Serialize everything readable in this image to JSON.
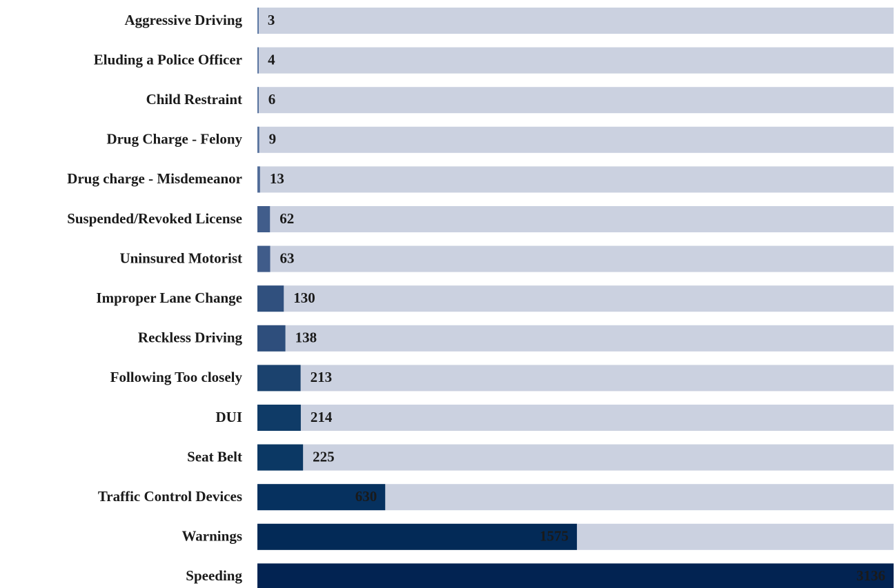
{
  "chart_data": {
    "type": "bar",
    "categories": [
      "Aggressive Driving",
      "Eluding a Police Officer",
      "Child Restraint",
      "Drug Charge - Felony",
      "Drug charge - Misdemeanor",
      "Suspended/Revoked License",
      "Uninsured Motorist",
      "Improper Lane Change",
      "Reckless Driving",
      "Following Too closely",
      "DUI",
      "Seat Belt",
      "Traffic Control Devices",
      "Warnings",
      "Speeding"
    ],
    "values": [
      3,
      4,
      6,
      9,
      13,
      62,
      63,
      130,
      138,
      213,
      214,
      225,
      630,
      1575,
      3136
    ],
    "colors": [
      "#5d78a3",
      "#5b76a1",
      "#58739e",
      "#55709b",
      "#516c98",
      "#415d8b",
      "#405c8a",
      "#30507e",
      "#2e4e7c",
      "#1b426e",
      "#0f3b67",
      "#0b3864",
      "#06315f",
      "#032a57",
      "#022352"
    ],
    "track_color": "#cbd1e0"
  }
}
